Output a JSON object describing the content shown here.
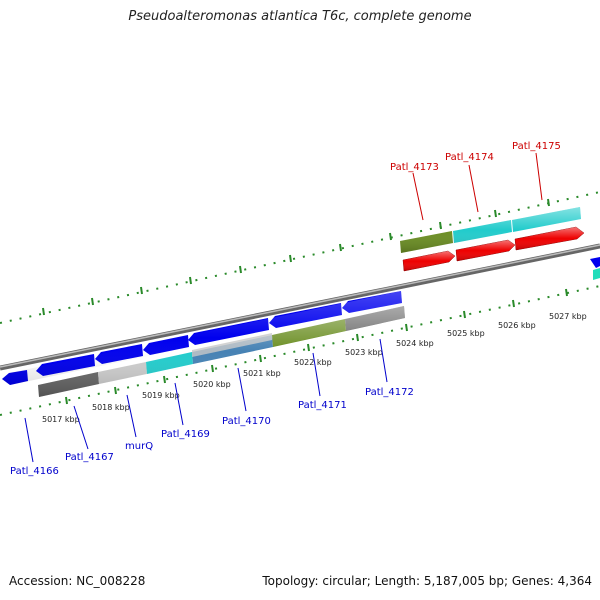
{
  "title": "Pseudoalteromonas atlantica T6c, complete genome",
  "footer": {
    "accession": "Accession: NC_008228",
    "topology": "Topology: circular; Length: 5,187,005 bp; Genes: 4,364"
  },
  "colors": {
    "forward": "#ff0000",
    "reverse": "#0000ee",
    "backbone": "#888888",
    "tick": "#228b22",
    "cyan": "#22cccc",
    "olive": "#6b8e23",
    "gray": "#666666",
    "lightgray": "#cccccc",
    "steelblue": "#4682b4"
  },
  "kbp_labels": [
    "5017 kbp",
    "5018 kbp",
    "5019 kbp",
    "5020 kbp",
    "5021 kbp",
    "5022 kbp",
    "5023 kbp",
    "5024 kbp",
    "5025 kbp",
    "5026 kbp",
    "5027 kbp"
  ],
  "forward_labels": [
    "Patl_4173",
    "Patl_4174",
    "Patl_4175"
  ],
  "reverse_labels": [
    "Patl_4166",
    "Patl_4167",
    "murQ",
    "Patl_4169",
    "Patl_4170",
    "Patl_4171",
    "Patl_4172"
  ]
}
